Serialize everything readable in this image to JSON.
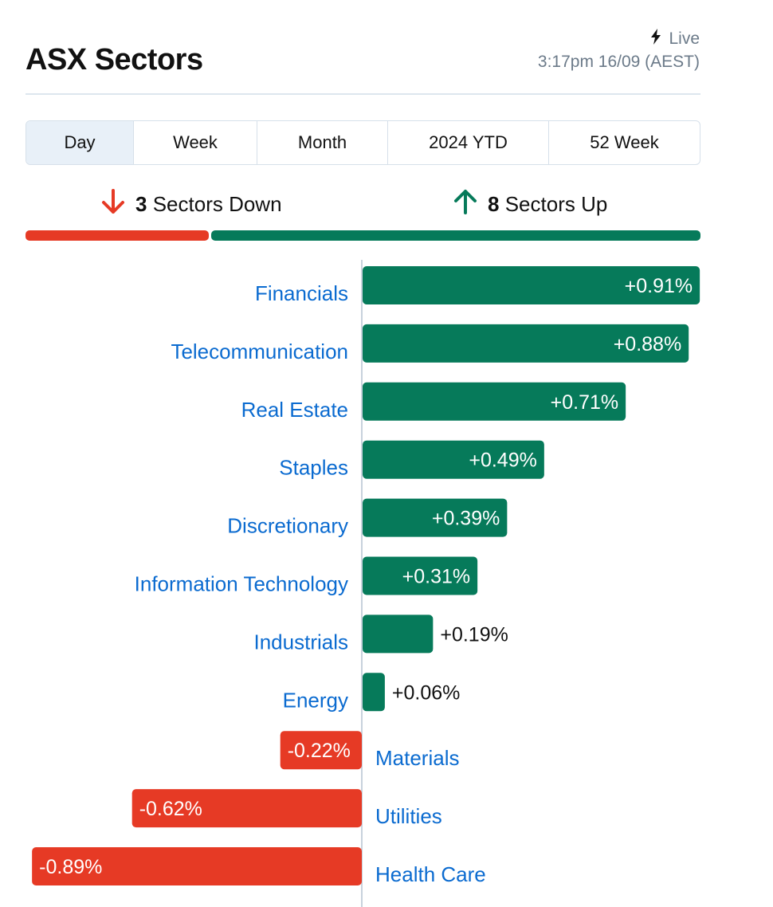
{
  "header": {
    "title": "ASX Sectors",
    "live_label": "Live",
    "timestamp": "3:17pm 16/09 (AEST)"
  },
  "tabs": [
    {
      "label": "Day",
      "active": true
    },
    {
      "label": "Week",
      "active": false
    },
    {
      "label": "Month",
      "active": false
    },
    {
      "label": "2024 YTD",
      "active": false
    },
    {
      "label": "52 Week",
      "active": false
    }
  ],
  "summary": {
    "down_count": "3",
    "down_label": "Sectors Down",
    "up_count": "8",
    "up_label": "Sectors Up"
  },
  "colors": {
    "up": "#067a5a",
    "down": "#e63a25",
    "link": "#0b6bd0"
  },
  "icons": {
    "live": "lightning-icon",
    "down": "arrow-down-icon",
    "up": "arrow-up-icon"
  },
  "chart_data": {
    "type": "bar",
    "orientation": "horizontal-diverging",
    "categories": [
      "Financials",
      "Telecommunication",
      "Real Estate",
      "Staples",
      "Discretionary",
      "Information Technology",
      "Industrials",
      "Energy",
      "Materials",
      "Utilities",
      "Health Care"
    ],
    "values": [
      0.91,
      0.88,
      0.71,
      0.49,
      0.39,
      0.31,
      0.19,
      0.06,
      -0.22,
      -0.62,
      -0.89
    ],
    "value_labels": [
      "+0.91%",
      "+0.88%",
      "+0.71%",
      "+0.49%",
      "+0.39%",
      "+0.31%",
      "+0.19%",
      "+0.06%",
      "-0.22%",
      "-0.62%",
      "-0.89%"
    ],
    "unit": "%"
  }
}
